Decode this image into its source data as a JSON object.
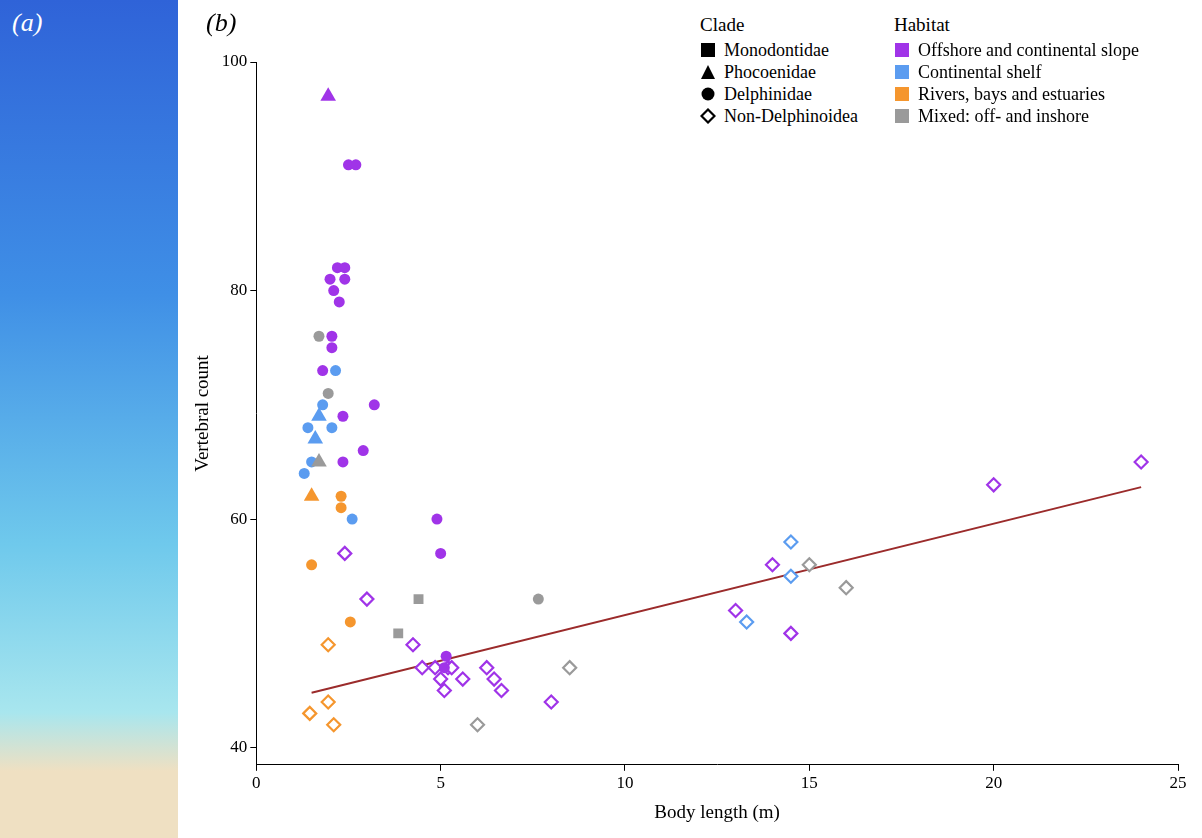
{
  "chart_data": {
    "type": "scatter",
    "panel_labels": [
      "(a)",
      "(b)"
    ],
    "x_label": "Body length (m)",
    "y_label": "Vertebral count",
    "xlim": [
      0,
      25
    ],
    "xticks": [
      0,
      5,
      10,
      15,
      20,
      25
    ],
    "ylim": [
      38.5,
      100
    ],
    "yticks": [
      40,
      60,
      80,
      100
    ],
    "grid": false,
    "legend": "upper right",
    "legend_groups": [
      {
        "title": "Clade",
        "entries": [
          {
            "name": "Monodontidae",
            "marker": "square"
          },
          {
            "name": "Phocoenidae",
            "marker": "triangle"
          },
          {
            "name": "Delphinidae",
            "marker": "circle"
          },
          {
            "name": "Non-Delphinoidea",
            "marker": "open_diamond"
          }
        ]
      },
      {
        "title": "Habitat",
        "entries": [
          {
            "name": "Offshore and continental slope",
            "color": "#a034e8"
          },
          {
            "name": "Continental shelf",
            "color": "#5b9cf0"
          },
          {
            "name": "Rivers, bays and estuaries",
            "color": "#f5962e"
          },
          {
            "name": "Mixed: off- and inshore",
            "color": "#9a9a9a"
          }
        ]
      }
    ],
    "series": [
      {
        "clade": "Phocoenidae",
        "habitat": "Offshore and continental slope",
        "x": [
          1.95
        ],
        "values": [
          97
        ]
      },
      {
        "clade": "Phocoenidae",
        "habitat": "Continental shelf",
        "x": [
          1.7,
          1.6
        ],
        "values": [
          69,
          67
        ]
      },
      {
        "clade": "Phocoenidae",
        "habitat": "Mixed: off- and inshore",
        "x": [
          1.7
        ],
        "values": [
          65
        ]
      },
      {
        "clade": "Phocoenidae",
        "habitat": "Rivers, bays and estuaries",
        "x": [
          1.5
        ],
        "values": [
          62
        ]
      },
      {
        "clade": "Monodontidae",
        "habitat": "Mixed: off- and inshore",
        "x": [
          4.4,
          3.85
        ],
        "values": [
          53,
          50
        ]
      },
      {
        "clade": "Delphinidae",
        "habitat": "Offshore and continental slope",
        "x": [
          2.5,
          2.7,
          2.2,
          2.4,
          2.0,
          2.4,
          2.1,
          2.25,
          1.8,
          2.05,
          2.05,
          2.35,
          3.2,
          2.9,
          2.35,
          4.9,
          5.0,
          5.15,
          5.1
        ],
        "values": [
          91,
          91,
          82,
          82,
          81,
          81,
          80,
          79,
          73,
          76,
          75,
          69,
          70,
          66,
          65,
          60,
          57,
          48,
          47
        ]
      },
      {
        "clade": "Delphinidae",
        "habitat": "Mixed: off- and inshore",
        "x": [
          1.7,
          1.95,
          7.65
        ],
        "values": [
          76,
          71,
          53
        ]
      },
      {
        "clade": "Delphinidae",
        "habitat": "Continental shelf",
        "x": [
          2.15,
          1.8,
          1.4,
          2.05,
          1.5,
          1.3,
          2.6
        ],
        "values": [
          73,
          70,
          68,
          68,
          65,
          64,
          60
        ]
      },
      {
        "clade": "Delphinidae",
        "habitat": "Rivers, bays and estuaries",
        "x": [
          2.3,
          2.3,
          1.5,
          2.55
        ],
        "values": [
          62,
          61,
          56,
          51
        ]
      },
      {
        "clade": "Non-Delphinoidea",
        "habitat": "Rivers, bays and estuaries",
        "x": [
          1.45,
          1.95,
          2.1,
          1.95
        ],
        "values": [
          43,
          44,
          42,
          49
        ]
      },
      {
        "clade": "Non-Delphinoidea",
        "habitat": "Offshore and continental slope",
        "x": [
          2.4,
          3.0,
          4.25,
          4.5,
          4.85,
          5.0,
          5.1,
          5.2,
          5.3,
          5.6,
          6.25,
          6.45,
          6.65,
          8.0,
          13.0,
          14.0,
          14.5,
          20.0,
          24.0
        ],
        "values": [
          57,
          53,
          49,
          47,
          47,
          46,
          45,
          47,
          47,
          46,
          47,
          46,
          45,
          44,
          52,
          56,
          50,
          63,
          65
        ]
      },
      {
        "clade": "Non-Delphinoidea",
        "habitat": "Continental shelf",
        "x": [
          13.3,
          14.5,
          14.5
        ],
        "values": [
          51,
          58,
          55
        ]
      },
      {
        "clade": "Non-Delphinoidea",
        "habitat": "Mixed: off- and inshore",
        "x": [
          6.0,
          8.5,
          15.0,
          16.0
        ],
        "values": [
          42,
          47,
          56,
          54
        ]
      }
    ],
    "fit_line": {
      "type": "line",
      "color": "#9b2b2b",
      "x": [
        1.5,
        24
      ],
      "values": [
        44.8,
        62.8
      ]
    }
  }
}
